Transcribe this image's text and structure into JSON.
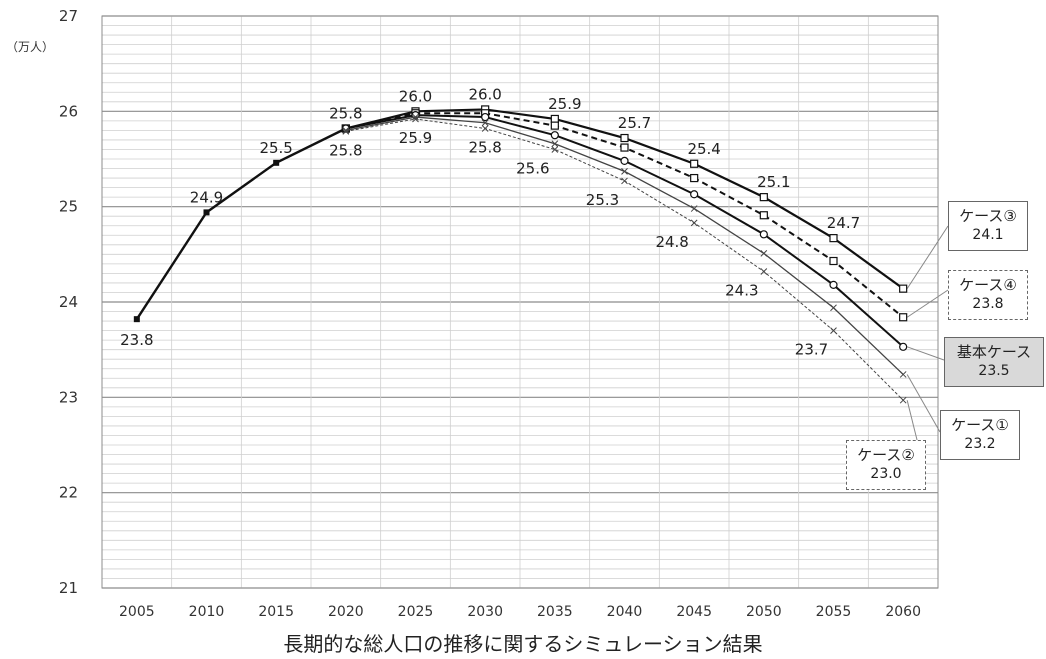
{
  "chart_data": {
    "type": "line",
    "title": "長期的な総人口の推移に関するシミュレーション結果",
    "ylabel": "（万人）",
    "xlabel": "",
    "ylim": [
      21,
      27
    ],
    "yticks": [
      21,
      22,
      23,
      24,
      25,
      26,
      27
    ],
    "categories": [
      "2005",
      "2010",
      "2015",
      "2020",
      "2025",
      "2030",
      "2035",
      "2040",
      "2045",
      "2050",
      "2055",
      "2060"
    ],
    "grid": true,
    "series": [
      {
        "name": "ケース③",
        "end_label": "24.1",
        "values": [
          23.82,
          24.94,
          25.46,
          25.82,
          26.0,
          26.02,
          25.92,
          25.72,
          25.45,
          25.1,
          24.67,
          24.14
        ],
        "labels": [
          "23.8",
          "24.9",
          "25.5",
          "25.8",
          "26.0",
          "26.0",
          "25.9",
          "25.7",
          "25.4",
          "25.1",
          "24.7",
          ""
        ]
      },
      {
        "name": "ケース④",
        "end_label": "23.8",
        "values": [
          23.82,
          24.94,
          25.46,
          25.82,
          25.98,
          25.98,
          25.85,
          25.62,
          25.3,
          24.91,
          24.43,
          23.84
        ],
        "labels": []
      },
      {
        "name": "基本ケース",
        "end_label": "23.5",
        "values": [
          23.82,
          24.94,
          25.46,
          25.82,
          25.96,
          25.94,
          25.75,
          25.48,
          25.13,
          24.71,
          24.18,
          23.53
        ],
        "labels": []
      },
      {
        "name": "ケース①",
        "end_label": "23.2",
        "values": [
          23.82,
          24.94,
          25.46,
          25.8,
          25.94,
          25.88,
          25.66,
          25.37,
          24.98,
          24.51,
          23.94,
          23.24
        ],
        "labels": []
      },
      {
        "name": "ケース②",
        "end_label": "23.0",
        "values": [
          23.82,
          24.94,
          25.46,
          25.79,
          25.92,
          25.82,
          25.6,
          25.27,
          24.83,
          24.32,
          23.7,
          22.97
        ],
        "labels": [
          "",
          "",
          "",
          "25.8",
          "25.9",
          "25.8",
          "25.6",
          "25.3",
          "24.8",
          "24.3",
          "23.7",
          ""
        ]
      }
    ]
  }
}
